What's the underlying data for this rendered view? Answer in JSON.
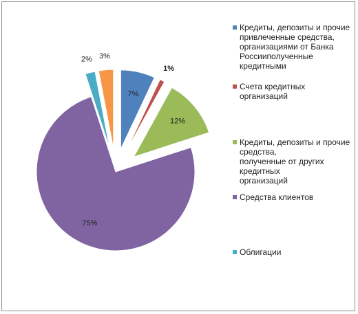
{
  "chart_data": {
    "type": "pie",
    "title": "",
    "exploded": true,
    "slices": [
      {
        "label": "Кредиты, депозиты и прочие\nпривлеченные средства,\nорганизациями от Банка\nРоссииполученные\nкредитными",
        "value": 7,
        "display": "7%",
        "color": "#4f81bd"
      },
      {
        "label": "Счета кредитных\nорганизаций",
        "value": 1,
        "display": "1%",
        "color": "#c0504d"
      },
      {
        "label": "Кредиты, депозиты и прочие\nсредства,\nполученные от других\nкредитных\nорганизаций",
        "value": 12,
        "display": "12%",
        "color": "#9bbb59"
      },
      {
        "label": "Средства клиентов",
        "value": 75,
        "display": "75%",
        "color": "#8064a2"
      },
      {
        "label": "Облигации",
        "value": 2,
        "display": "2%",
        "color": "#4bacc6"
      },
      {
        "label": "",
        "value": 3,
        "display": "3%",
        "color": "#f79646"
      }
    ]
  }
}
